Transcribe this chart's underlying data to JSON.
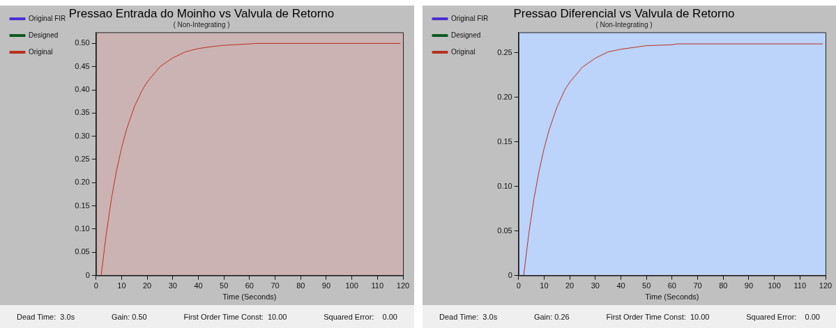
{
  "chart_data": [
    {
      "type": "line",
      "title": "Pressao Entrada do Moinho vs Valvula de Retorno",
      "subtitle": "( Non-Integrating )",
      "xlabel": "Time (Seconds)",
      "xlim": [
        0,
        120
      ],
      "xticks": [
        0,
        10,
        20,
        30,
        40,
        50,
        60,
        70,
        80,
        90,
        100,
        110,
        120
      ],
      "ylim": [
        0,
        0.524
      ],
      "yticks": [
        {
          "value": 0,
          "label": "0"
        },
        {
          "value": 0.05,
          "label": "0.05"
        },
        {
          "value": 0.1,
          "label": "0.10"
        },
        {
          "value": 0.15,
          "label": "0.15"
        },
        {
          "value": 0.2,
          "label": "0.20"
        },
        {
          "value": 0.25,
          "label": "0.25"
        },
        {
          "value": 0.3,
          "label": "0.30"
        },
        {
          "value": 0.35,
          "label": "0.35"
        },
        {
          "value": 0.4,
          "label": "0.40"
        },
        {
          "value": 0.45,
          "label": "0.45"
        },
        {
          "value": 0.5,
          "label": "0.50"
        }
      ],
      "grid": false,
      "legend": "left",
      "marker": "none",
      "line_style": "solid",
      "series": [
        {
          "name": "Original FIR",
          "color": "#4b2fd0"
        },
        {
          "name": "Designed",
          "color": "#0b5a20"
        },
        {
          "name": "Original",
          "color": "#b8301e",
          "x": [
            2,
            4,
            6,
            8,
            10,
            12,
            15,
            18,
            20,
            25,
            30,
            35,
            40,
            45,
            50,
            60,
            62,
            119
          ],
          "values": [
            0,
            0.09,
            0.165,
            0.226,
            0.275,
            0.316,
            0.364,
            0.399,
            0.417,
            0.45,
            0.469,
            0.482,
            0.489,
            0.493,
            0.496,
            0.499,
            0.5,
            0.5
          ]
        }
      ],
      "annotations": [
        "Dead Time:  3.0s",
        "Gain: 0.50",
        "First Order Time Const:  10.00",
        "Squared Error:    0.00"
      ]
    },
    {
      "type": "line",
      "title": "Pressao Diferencial vs Valvula de Retorno",
      "subtitle": "( Non-Integrating )",
      "xlabel": "Time (Seconds)",
      "xlim": [
        0,
        120
      ],
      "xticks": [
        0,
        10,
        20,
        30,
        40,
        50,
        60,
        70,
        80,
        90,
        100,
        110,
        120
      ],
      "ylim": [
        0,
        0.273
      ],
      "yticks": [
        {
          "value": 0,
          "label": "0"
        },
        {
          "value": 0.05,
          "label": "0.05"
        },
        {
          "value": 0.1,
          "label": "0.10"
        },
        {
          "value": 0.15,
          "label": "0.15"
        },
        {
          "value": 0.2,
          "label": "0.20"
        },
        {
          "value": 0.25,
          "label": "0.25"
        }
      ],
      "grid": false,
      "legend": "left",
      "marker": "none",
      "line_style": "solid",
      "series": [
        {
          "name": "Original FIR",
          "color": "#4b2fd0"
        },
        {
          "name": "Designed",
          "color": "#0b5a20"
        },
        {
          "name": "Original",
          "color": "#b8301e",
          "x": [
            2,
            4,
            6,
            8,
            10,
            12,
            15,
            18,
            20,
            25,
            30,
            35,
            40,
            45,
            50,
            60,
            62,
            119
          ],
          "values": [
            0,
            0.047,
            0.086,
            0.117,
            0.143,
            0.164,
            0.189,
            0.208,
            0.217,
            0.234,
            0.244,
            0.251,
            0.254,
            0.256,
            0.258,
            0.259,
            0.26,
            0.26
          ]
        }
      ],
      "annotations": [
        "Dead Time:  3.0s",
        "Gain: 0.26",
        "First Order Time Const:  10.00",
        "Squared Error:    0.00"
      ]
    }
  ]
}
